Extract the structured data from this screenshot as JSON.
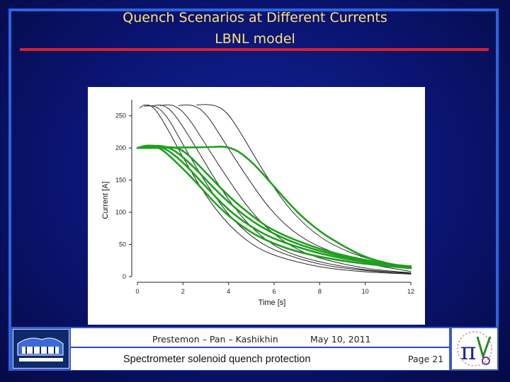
{
  "slide": {
    "title_line1": "Quench Scenarios at Different Currents",
    "title_line2": "LBNL model"
  },
  "footer": {
    "authors": "Prestemon – Pan – Kashikhin",
    "date": "May 10, 2011",
    "subject": "Spectrometer solenoid quench protection",
    "page": "Page 21"
  },
  "logos": {
    "left": "berkeley-lab-logo",
    "right": "mice-logo"
  },
  "colors": {
    "black_series": "#111111",
    "green_series": "#1fa01f",
    "title": "#ffe07a",
    "accent_line": "#d8202a"
  },
  "chart_data": {
    "type": "line",
    "title": "",
    "xlabel": "Time [s]",
    "ylabel": "Current [A]",
    "xlim": [
      0,
      12
    ],
    "ylim": [
      0,
      275
    ],
    "xticks": [
      0,
      2,
      4,
      6,
      8,
      10,
      12
    ],
    "yticks": [
      0,
      50,
      100,
      150,
      200,
      250
    ],
    "grid": false,
    "series": [
      {
        "color": "#111111",
        "width": 0.9,
        "points": [
          [
            0.1,
            262
          ],
          [
            0.3,
            268
          ],
          [
            0.7,
            265
          ],
          [
            1.2,
            238
          ],
          [
            2,
            185
          ],
          [
            3,
            125
          ],
          [
            4,
            80
          ],
          [
            5,
            50
          ],
          [
            6,
            32
          ],
          [
            8,
            14
          ],
          [
            10,
            7
          ],
          [
            12,
            4
          ]
        ]
      },
      {
        "color": "#111111",
        "width": 0.9,
        "points": [
          [
            0.3,
            265
          ],
          [
            0.8,
            266
          ],
          [
            1.3,
            250
          ],
          [
            2,
            205
          ],
          [
            3,
            145
          ],
          [
            4,
            95
          ],
          [
            5,
            62
          ],
          [
            6,
            40
          ],
          [
            8,
            18
          ],
          [
            10,
            9
          ],
          [
            12,
            5
          ]
        ]
      },
      {
        "color": "#111111",
        "width": 0.9,
        "points": [
          [
            0.6,
            265
          ],
          [
            1.1,
            268
          ],
          [
            1.6,
            255
          ],
          [
            2.5,
            205
          ],
          [
            3.5,
            145
          ],
          [
            4.5,
            95
          ],
          [
            5.5,
            60
          ],
          [
            6.5,
            38
          ],
          [
            8,
            22
          ],
          [
            10,
            10
          ],
          [
            12,
            5
          ]
        ]
      },
      {
        "color": "#111111",
        "width": 0.9,
        "points": [
          [
            1,
            266
          ],
          [
            1.6,
            268
          ],
          [
            2.2,
            250
          ],
          [
            3,
            205
          ],
          [
            4,
            150
          ],
          [
            5,
            100
          ],
          [
            6,
            65
          ],
          [
            7,
            42
          ],
          [
            8,
            28
          ],
          [
            10,
            12
          ],
          [
            12,
            6
          ]
        ]
      },
      {
        "color": "#111111",
        "width": 0.9,
        "points": [
          [
            1.8,
            266
          ],
          [
            2.4,
            268
          ],
          [
            3,
            255
          ],
          [
            3.8,
            210
          ],
          [
            4.8,
            155
          ],
          [
            5.8,
            105
          ],
          [
            6.8,
            70
          ],
          [
            8,
            45
          ],
          [
            10,
            20
          ],
          [
            12,
            8
          ]
        ]
      },
      {
        "color": "#111111",
        "width": 0.9,
        "points": [
          [
            2.6,
            267
          ],
          [
            3.3,
            268
          ],
          [
            3.9,
            258
          ],
          [
            4.6,
            220
          ],
          [
            5.5,
            165
          ],
          [
            6.5,
            112
          ],
          [
            7.5,
            75
          ],
          [
            8.5,
            50
          ],
          [
            10,
            28
          ],
          [
            12,
            12
          ]
        ]
      },
      {
        "color": "#1fa01f",
        "width": 2.6,
        "points": [
          [
            0,
            200
          ],
          [
            0.5,
            205
          ],
          [
            1,
            200
          ],
          [
            1.5,
            185
          ],
          [
            2.5,
            150
          ],
          [
            3.5,
            110
          ],
          [
            4.5,
            80
          ],
          [
            5.5,
            58
          ],
          [
            7,
            38
          ],
          [
            9,
            24
          ],
          [
            11,
            16
          ],
          [
            12,
            13
          ]
        ]
      },
      {
        "color": "#1fa01f",
        "width": 2.6,
        "points": [
          [
            0.2,
            200
          ],
          [
            0.7,
            205
          ],
          [
            1.3,
            198
          ],
          [
            2,
            178
          ],
          [
            3,
            140
          ],
          [
            4,
            103
          ],
          [
            5,
            77
          ],
          [
            6,
            58
          ],
          [
            8,
            35
          ],
          [
            10,
            22
          ],
          [
            12,
            15
          ]
        ]
      },
      {
        "color": "#1fa01f",
        "width": 2.6,
        "points": [
          [
            0.5,
            202
          ],
          [
            1,
            204
          ],
          [
            1.6,
            198
          ],
          [
            2.5,
            170
          ],
          [
            3.5,
            132
          ],
          [
            4.5,
            100
          ],
          [
            5.5,
            75
          ],
          [
            7,
            50
          ],
          [
            9,
            30
          ],
          [
            11,
            19
          ],
          [
            12,
            16
          ]
        ]
      },
      {
        "color": "#1fa01f",
        "width": 2.6,
        "points": [
          [
            0.8,
            200
          ],
          [
            1.4,
            202
          ],
          [
            2,
            198
          ],
          [
            3,
            162
          ],
          [
            4,
            125
          ],
          [
            5,
            95
          ],
          [
            6,
            70
          ],
          [
            8,
            42
          ],
          [
            10,
            25
          ],
          [
            12,
            15
          ]
        ]
      },
      {
        "color": "#1fa01f",
        "width": 2.6,
        "points": [
          [
            0,
            200
          ],
          [
            1,
            200
          ],
          [
            2,
            201
          ],
          [
            3,
            201
          ],
          [
            4.1,
            203
          ],
          [
            5,
            180
          ],
          [
            6,
            140
          ],
          [
            7,
            100
          ],
          [
            8,
            70
          ],
          [
            9,
            48
          ],
          [
            10,
            30
          ],
          [
            11,
            20
          ],
          [
            12,
            14
          ]
        ]
      }
    ]
  }
}
